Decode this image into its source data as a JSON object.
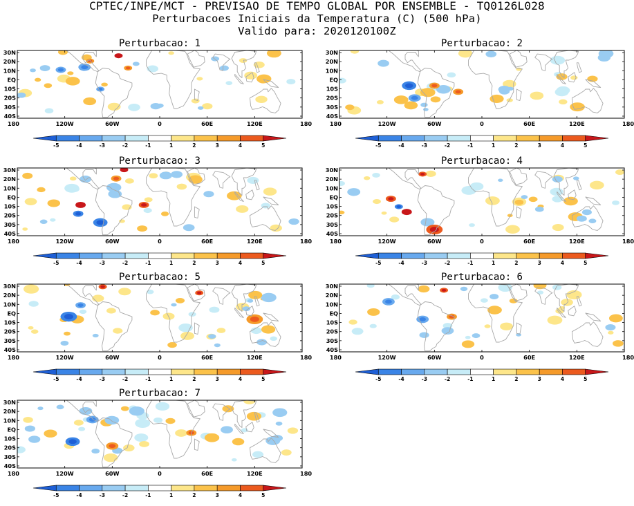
{
  "header": {
    "line1": "CPTEC/INPE/MCT - PREVISAO DE TEMPO GLOBAL POR ENSEMBLE - TQ0126L028",
    "line2": "Perturbacoes Iniciais da Temperatura (C) (500 hPa)",
    "line3": "Valido para: 2020120100Z"
  },
  "map_axes": {
    "lat_labels": [
      "30N",
      "20N",
      "10N",
      "EQ",
      "10S",
      "20S",
      "30S",
      "40S"
    ],
    "lon_labels": [
      "180",
      "120W",
      "60W",
      "0",
      "60E",
      "120E",
      "180"
    ]
  },
  "colorbar": {
    "labels": [
      "-5",
      "-4",
      "-3",
      "-2",
      "-1",
      "1",
      "2",
      "3",
      "4",
      "5"
    ],
    "colors": [
      "#1e5fd6",
      "#3a84e6",
      "#68a9ee",
      "#99ccf2",
      "#c7ecf7",
      "#ffffff",
      "#fde68a",
      "#fbc24a",
      "#f59a2a",
      "#ec5a1e",
      "#c8171a"
    ]
  },
  "panels": [
    {
      "title": "Perturbacao: 1"
    },
    {
      "title": "Perturbacao: 2"
    },
    {
      "title": "Perturbacao: 3"
    },
    {
      "title": "Perturbacao: 4"
    },
    {
      "title": "Perturbacao: 5"
    },
    {
      "title": "Perturbacao: 6"
    },
    {
      "title": "Perturbacao: 7"
    }
  ]
}
